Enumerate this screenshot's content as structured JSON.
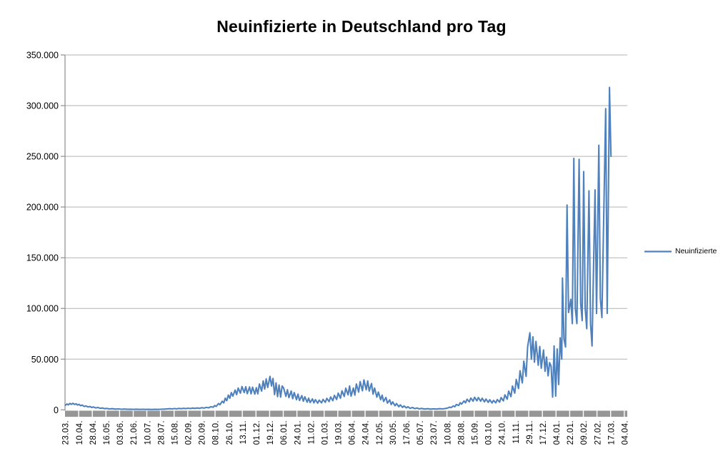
{
  "chart_data": {
    "type": "line",
    "title": "Neuinfizierte in Deutschland pro Tag",
    "xlabel": "",
    "ylabel": "",
    "ylim": [
      0,
      350000
    ],
    "grid": true,
    "legend_position": "right",
    "y_ticks": [
      0,
      50000,
      100000,
      150000,
      200000,
      250000,
      300000,
      350000
    ],
    "y_tick_labels": [
      "0",
      "50.000",
      "100.000",
      "150.000",
      "200.000",
      "250.000",
      "300.000",
      "350.000"
    ],
    "x_tick_interval_days": 18,
    "total_days": 742,
    "x_tick_labels": [
      "23.03.",
      "10.04.",
      "28.04.",
      "16.05.",
      "03.06.",
      "21.06.",
      "10.07.",
      "28.07.",
      "15.08.",
      "02.09.",
      "20.09.",
      "08.10.",
      "26.10.",
      "13.11.",
      "01.12.",
      "19.12.",
      "06.01.",
      "24.01.",
      "11.02.",
      "01.03.",
      "19.03.",
      "06.04.",
      "24.04.",
      "12.05.",
      "30.05.",
      "17.06.",
      "05.07.",
      "23.07.",
      "10.08.",
      "28.08.",
      "15.09.",
      "03.10.",
      "24.10.",
      "11.11.",
      "29.11.",
      "17.12.",
      "04.01.",
      "22.01.",
      "09.02.",
      "27.02.",
      "17.03.",
      "04.04."
    ],
    "series": [
      {
        "name": "Neuinfizierte",
        "color": "#4F81BD",
        "points": [
          [
            0,
            4500
          ],
          [
            2,
            5800
          ],
          [
            4,
            4900
          ],
          [
            6,
            6300
          ],
          [
            8,
            5400
          ],
          [
            10,
            6500
          ],
          [
            12,
            5300
          ],
          [
            14,
            6000
          ],
          [
            16,
            4700
          ],
          [
            18,
            5400
          ],
          [
            20,
            4100
          ],
          [
            22,
            4700
          ],
          [
            25,
            3300
          ],
          [
            27,
            3900
          ],
          [
            30,
            2800
          ],
          [
            32,
            3300
          ],
          [
            35,
            2300
          ],
          [
            37,
            2800
          ],
          [
            40,
            1900
          ],
          [
            43,
            2300
          ],
          [
            46,
            1500
          ],
          [
            49,
            1800
          ],
          [
            52,
            1100
          ],
          [
            55,
            1400
          ],
          [
            58,
            850
          ],
          [
            62,
            1150
          ],
          [
            66,
            680
          ],
          [
            70,
            900
          ],
          [
            74,
            550
          ],
          [
            78,
            760
          ],
          [
            82,
            480
          ],
          [
            86,
            640
          ],
          [
            90,
            430
          ],
          [
            94,
            620
          ],
          [
            98,
            400
          ],
          [
            102,
            560
          ],
          [
            106,
            400
          ],
          [
            110,
            520
          ],
          [
            114,
            380
          ],
          [
            118,
            480
          ],
          [
            122,
            400
          ],
          [
            126,
            560
          ],
          [
            130,
            680
          ],
          [
            134,
            880
          ],
          [
            138,
            1150
          ],
          [
            141,
            900
          ],
          [
            144,
            1250
          ],
          [
            147,
            1000
          ],
          [
            150,
            1400
          ],
          [
            153,
            1100
          ],
          [
            156,
            1500
          ],
          [
            159,
            1200
          ],
          [
            162,
            1650
          ],
          [
            165,
            1300
          ],
          [
            168,
            1750
          ],
          [
            171,
            1400
          ],
          [
            174,
            1850
          ],
          [
            177,
            1500
          ],
          [
            180,
            2100
          ],
          [
            183,
            1700
          ],
          [
            186,
            2400
          ],
          [
            189,
            1950
          ],
          [
            192,
            3100
          ],
          [
            195,
            2500
          ],
          [
            197,
            4200
          ],
          [
            199,
            3400
          ],
          [
            202,
            6200
          ],
          [
            204,
            5000
          ],
          [
            207,
            8500
          ],
          [
            209,
            6800
          ],
          [
            211,
            11500
          ],
          [
            213,
            9000
          ],
          [
            215,
            14500
          ],
          [
            217,
            11500
          ],
          [
            219,
            17000
          ],
          [
            221,
            13500
          ],
          [
            224,
            19500
          ],
          [
            226,
            15000
          ],
          [
            228,
            21500
          ],
          [
            231,
            16500
          ],
          [
            233,
            23000
          ],
          [
            236,
            17000
          ],
          [
            238,
            22800
          ],
          [
            240,
            16000
          ],
          [
            243,
            22500
          ],
          [
            245,
            15800
          ],
          [
            247,
            22300
          ],
          [
            250,
            15500
          ],
          [
            252,
            21800
          ],
          [
            254,
            15800
          ],
          [
            256,
            25500
          ],
          [
            259,
            18500
          ],
          [
            261,
            28500
          ],
          [
            263,
            20500
          ],
          [
            265,
            30500
          ],
          [
            267,
            22000
          ],
          [
            270,
            33000
          ],
          [
            272,
            23500
          ],
          [
            274,
            31000
          ],
          [
            276,
            15000
          ],
          [
            278,
            26500
          ],
          [
            280,
            13000
          ],
          [
            282,
            24500
          ],
          [
            284,
            12500
          ],
          [
            286,
            23500
          ],
          [
            288,
            21500
          ],
          [
            291,
            13200
          ],
          [
            293,
            19800
          ],
          [
            295,
            12000
          ],
          [
            298,
            18500
          ],
          [
            300,
            11000
          ],
          [
            302,
            17000
          ],
          [
            305,
            10000
          ],
          [
            307,
            15500
          ],
          [
            309,
            9200
          ],
          [
            312,
            14000
          ],
          [
            314,
            8500
          ],
          [
            316,
            12800
          ],
          [
            319,
            7600
          ],
          [
            321,
            11500
          ],
          [
            323,
            7200
          ],
          [
            326,
            10800
          ],
          [
            328,
            6900
          ],
          [
            330,
            10000
          ],
          [
            333,
            6600
          ],
          [
            335,
            9600
          ],
          [
            338,
            6900
          ],
          [
            340,
            10300
          ],
          [
            343,
            7400
          ],
          [
            345,
            11300
          ],
          [
            348,
            8100
          ],
          [
            350,
            12700
          ],
          [
            353,
            9000
          ],
          [
            355,
            14300
          ],
          [
            358,
            10200
          ],
          [
            360,
            16500
          ],
          [
            363,
            11500
          ],
          [
            365,
            18800
          ],
          [
            368,
            13200
          ],
          [
            370,
            21300
          ],
          [
            373,
            14800
          ],
          [
            375,
            23500
          ],
          [
            377,
            13500
          ],
          [
            380,
            21500
          ],
          [
            382,
            14500
          ],
          [
            384,
            25500
          ],
          [
            387,
            17500
          ],
          [
            389,
            27800
          ],
          [
            392,
            18800
          ],
          [
            394,
            29500
          ],
          [
            397,
            19800
          ],
          [
            399,
            28500
          ],
          [
            401,
            18500
          ],
          [
            404,
            26000
          ],
          [
            406,
            15500
          ],
          [
            408,
            21500
          ],
          [
            411,
            12500
          ],
          [
            413,
            17500
          ],
          [
            416,
            10000
          ],
          [
            418,
            14500
          ],
          [
            420,
            8200
          ],
          [
            423,
            12200
          ],
          [
            425,
            6600
          ],
          [
            428,
            9800
          ],
          [
            430,
            5200
          ],
          [
            432,
            7800
          ],
          [
            435,
            4000
          ],
          [
            437,
            6200
          ],
          [
            440,
            3100
          ],
          [
            442,
            4900
          ],
          [
            445,
            2400
          ],
          [
            447,
            3800
          ],
          [
            450,
            1900
          ],
          [
            452,
            3000
          ],
          [
            455,
            1500
          ],
          [
            458,
            2300
          ],
          [
            461,
            1200
          ],
          [
            464,
            1800
          ],
          [
            467,
            950
          ],
          [
            470,
            1400
          ],
          [
            474,
            800
          ],
          [
            478,
            1150
          ],
          [
            482,
            700
          ],
          [
            486,
            1000
          ],
          [
            490,
            800
          ],
          [
            494,
            1100
          ],
          [
            498,
            950
          ],
          [
            502,
            1400
          ],
          [
            505,
            1900
          ],
          [
            507,
            2700
          ],
          [
            509,
            2200
          ],
          [
            512,
            3800
          ],
          [
            514,
            3100
          ],
          [
            516,
            5300
          ],
          [
            519,
            4300
          ],
          [
            521,
            7000
          ],
          [
            523,
            5600
          ],
          [
            526,
            8800
          ],
          [
            528,
            6900
          ],
          [
            530,
            10400
          ],
          [
            533,
            7900
          ],
          [
            535,
            11600
          ],
          [
            538,
            8600
          ],
          [
            540,
            12400
          ],
          [
            543,
            8900
          ],
          [
            545,
            12100
          ],
          [
            548,
            8500
          ],
          [
            550,
            11400
          ],
          [
            553,
            7900
          ],
          [
            555,
            10600
          ],
          [
            558,
            7300
          ],
          [
            560,
            9900
          ],
          [
            563,
            6800
          ],
          [
            565,
            9300
          ],
          [
            568,
            6900
          ],
          [
            570,
            10100
          ],
          [
            573,
            7600
          ],
          [
            575,
            12100
          ],
          [
            578,
            8800
          ],
          [
            580,
            14800
          ],
          [
            583,
            10500
          ],
          [
            585,
            18500
          ],
          [
            588,
            13000
          ],
          [
            590,
            23500
          ],
          [
            593,
            16500
          ],
          [
            595,
            30000
          ],
          [
            598,
            21000
          ],
          [
            600,
            38500
          ],
          [
            603,
            26500
          ],
          [
            605,
            48000
          ],
          [
            608,
            33000
          ],
          [
            610,
            62000
          ],
          [
            613,
            76000
          ],
          [
            615,
            50000
          ],
          [
            617,
            72000
          ],
          [
            619,
            47000
          ],
          [
            621,
            67500
          ],
          [
            624,
            44000
          ],
          [
            626,
            62500
          ],
          [
            628,
            41000
          ],
          [
            631,
            59000
          ],
          [
            633,
            38000
          ],
          [
            635,
            52000
          ],
          [
            637,
            33500
          ],
          [
            639,
            46500
          ],
          [
            641,
            43000
          ],
          [
            643,
            12500
          ],
          [
            645,
            63000
          ],
          [
            647,
            13500
          ],
          [
            649,
            60000
          ],
          [
            651,
            25000
          ],
          [
            653,
            71000
          ],
          [
            655,
            50000
          ],
          [
            656,
            130000
          ],
          [
            658,
            70000
          ],
          [
            660,
            62000
          ],
          [
            662,
            202000
          ],
          [
            664,
            96000
          ],
          [
            667,
            109000
          ],
          [
            669,
            85000
          ],
          [
            671,
            248000
          ],
          [
            673,
            100000
          ],
          [
            675,
            85000
          ],
          [
            678,
            247000
          ],
          [
            680,
            105000
          ],
          [
            682,
            88000
          ],
          [
            684,
            235000
          ],
          [
            686,
            100000
          ],
          [
            688,
            80000
          ],
          [
            691,
            216000
          ],
          [
            693,
            85000
          ],
          [
            695,
            63000
          ],
          [
            699,
            217000
          ],
          [
            701,
            95000
          ],
          [
            704,
            261000
          ],
          [
            706,
            110000
          ],
          [
            708,
            91000
          ],
          [
            713,
            297000
          ],
          [
            715,
            95000
          ],
          [
            718,
            318000
          ],
          [
            720,
            250000
          ]
        ]
      }
    ]
  },
  "colors": {
    "series_line": "#4F81BD",
    "gridline": "#B3B3B3",
    "axis_line": "#8C8C8C",
    "axis_band": "#969696",
    "band_separator": "#FFFFFF",
    "text": "#000000",
    "background": "#FFFFFF"
  }
}
